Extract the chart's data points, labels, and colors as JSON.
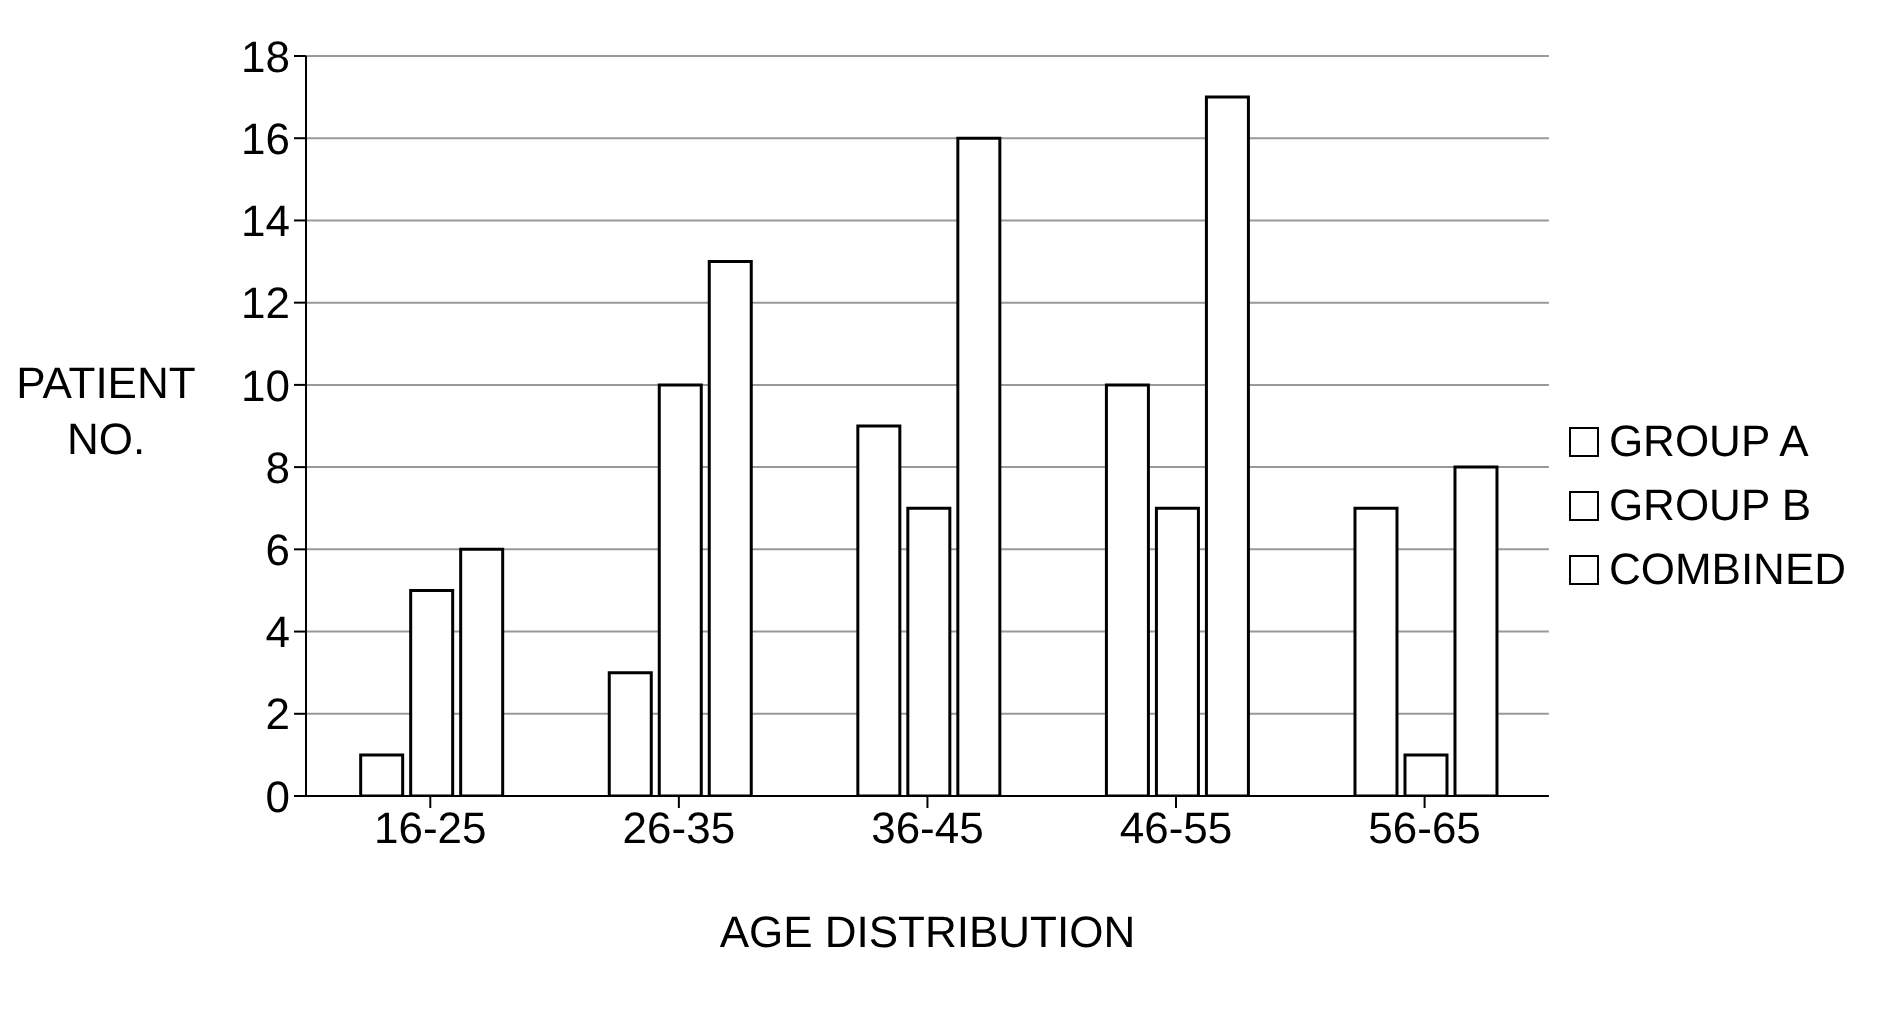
{
  "chart_data": {
    "type": "bar",
    "xlabel": "AGE DISTRIBUTION",
    "ylabel": "PATIENT NO.",
    "categories": [
      "16-25",
      "26-35",
      "36-45",
      "46-55",
      "56-65"
    ],
    "series": [
      {
        "name": "GROUP A",
        "color": "#ffffff",
        "values": [
          1,
          3,
          9,
          10,
          7
        ]
      },
      {
        "name": "GROUP B",
        "color": "#ffffff",
        "values": [
          5,
          10,
          7,
          7,
          1
        ]
      },
      {
        "name": "COMBINED",
        "color": "#ffffff",
        "values": [
          6,
          13,
          16,
          17,
          8
        ]
      }
    ],
    "ylim": [
      0,
      18
    ],
    "yticks": [
      0,
      2,
      4,
      6,
      8,
      10,
      12,
      14,
      16,
      18
    ],
    "grid": "y",
    "legend": "right"
  }
}
